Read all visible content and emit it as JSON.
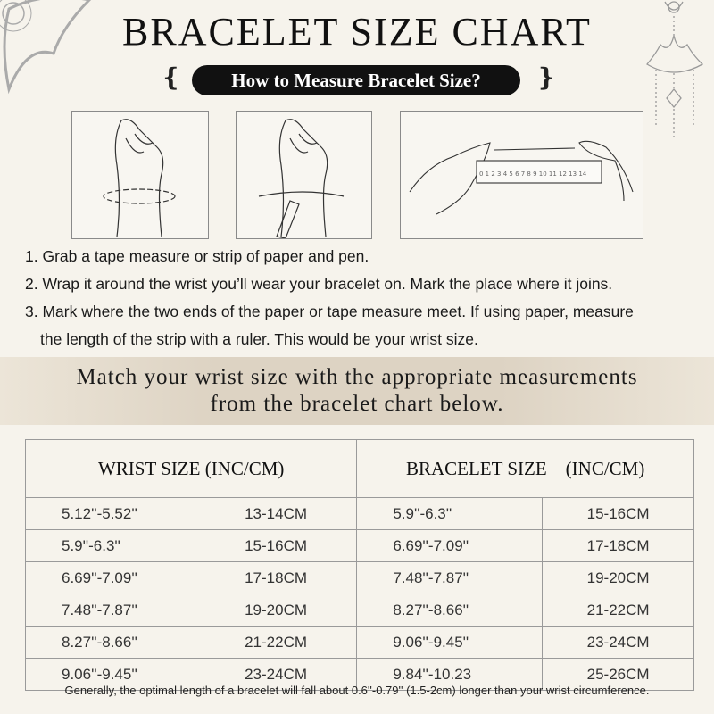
{
  "header": {
    "title": "BRACELET SIZE CHART",
    "subtitle": "How to Measure Bracelet Size?"
  },
  "illustrations": [
    {
      "name": "hand-wrapping-tape"
    },
    {
      "name": "hand-marking-pen"
    },
    {
      "name": "hands-with-ruler",
      "ruler_labels": [
        "0",
        "1",
        "2",
        "3",
        "4",
        "5",
        "6",
        "7",
        "8",
        "9",
        "10",
        "11",
        "12",
        "13",
        "14"
      ]
    }
  ],
  "steps": [
    "1. Grab a tape measure or strip of paper and pen.",
    "2. Wrap it around the wrist you’ll wear your bracelet on. Mark the place where it joins.",
    "3. Mark where the two ends of the paper or tape measure meet. If using paper, measure",
    "the length of the strip with a ruler. This would be your wrist size."
  ],
  "band": {
    "line1": "Match your wrist size with the appropriate measurements",
    "line2": "from the bracelet chart below."
  },
  "table": {
    "headers": [
      "WRIST SIZE (INC/CM)",
      "BRACELET SIZE    (INC/CM)"
    ],
    "rows": [
      [
        "5.12''-5.52''",
        "13-14CM",
        "5.9''-6.3''",
        "15-16CM"
      ],
      [
        "5.9''-6.3''",
        "15-16CM",
        "6.69''-7.09''",
        "17-18CM"
      ],
      [
        "6.69''-7.09''",
        "17-18CM",
        "7.48''-7.87''",
        "19-20CM"
      ],
      [
        "7.48''-7.87''",
        "19-20CM",
        "8.27''-8.66''",
        "21-22CM"
      ],
      [
        "8.27''-8.66''",
        "21-22CM",
        "9.06''-9.45''",
        "23-24CM"
      ],
      [
        "9.06''-9.45''",
        "23-24CM",
        "9.84''-10.23",
        "25-26CM"
      ]
    ]
  },
  "footnote": "Generally, the optimal length of a bracelet will fall about 0.6''-0.79'' (1.5-2cm) longer than your wrist circumference.",
  "colors": {
    "background": "#f6f3ec",
    "pill": "#111111",
    "band": "#ddd3c3"
  }
}
